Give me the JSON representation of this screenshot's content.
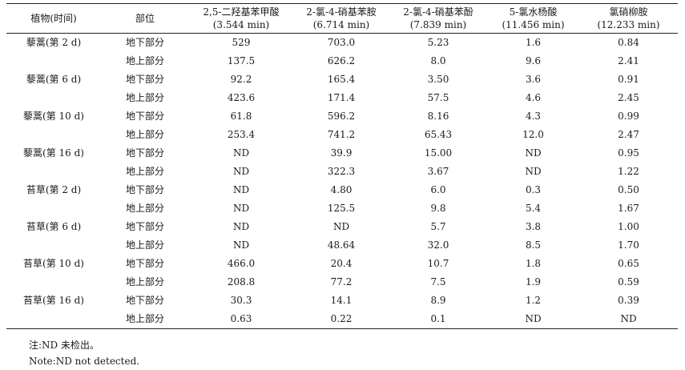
{
  "table": {
    "headers": [
      {
        "title": "植物(时间)",
        "sub": ""
      },
      {
        "title": "部位",
        "sub": ""
      },
      {
        "title": "2,5-二羟基苯甲酸",
        "sub": "(3.544 min)"
      },
      {
        "title": "2-氯-4-硝基苯胺",
        "sub": "(6.714 min)"
      },
      {
        "title": "2-氯-4-硝基苯酚",
        "sub": "(7.839 min)"
      },
      {
        "title": "5-氯水杨酸",
        "sub": "(11.456 min)"
      },
      {
        "title": "氯硝柳胺",
        "sub": "(12.233 min)"
      }
    ],
    "groups": [
      {
        "plant": "藜蒿(第 2 d)",
        "rows": [
          {
            "part": "地下部分",
            "values": [
              "529",
              "703.0",
              "5.23",
              "1.6",
              "0.84"
            ]
          },
          {
            "part": "地上部分",
            "values": [
              "137.5",
              "626.2",
              "8.0",
              "9.6",
              "2.41"
            ]
          }
        ]
      },
      {
        "plant": "藜蒿(第 6 d)",
        "rows": [
          {
            "part": "地下部分",
            "values": [
              "92.2",
              "165.4",
              "3.50",
              "3.6",
              "0.91"
            ]
          },
          {
            "part": "地上部分",
            "values": [
              "423.6",
              "171.4",
              "57.5",
              "4.6",
              "2.45"
            ]
          }
        ]
      },
      {
        "plant": "藜蒿(第 10 d)",
        "rows": [
          {
            "part": "地下部分",
            "values": [
              "61.8",
              "596.2",
              "8.16",
              "4.3",
              "0.99"
            ]
          },
          {
            "part": "地上部分",
            "values": [
              "253.4",
              "741.2",
              "65.43",
              "12.0",
              "2.47"
            ]
          }
        ]
      },
      {
        "plant": "藜蒿(第 16 d)",
        "rows": [
          {
            "part": "地下部分",
            "values": [
              "ND",
              "39.9",
              "15.00",
              "ND",
              "0.95"
            ]
          },
          {
            "part": "地上部分",
            "values": [
              "ND",
              "322.3",
              "3.67",
              "ND",
              "1.22"
            ]
          }
        ]
      },
      {
        "plant": "苔草(第 2 d)",
        "rows": [
          {
            "part": "地下部分",
            "values": [
              "ND",
              "4.80",
              "6.0",
              "0.3",
              "0.50"
            ]
          },
          {
            "part": "地上部分",
            "values": [
              "ND",
              "125.5",
              "9.8",
              "5.4",
              "1.67"
            ]
          }
        ]
      },
      {
        "plant": "苔草(第 6 d)",
        "rows": [
          {
            "part": "地下部分",
            "values": [
              "ND",
              "ND",
              "5.7",
              "3.8",
              "1.00"
            ]
          },
          {
            "part": "地上部分",
            "values": [
              "ND",
              "48.64",
              "32.0",
              "8.5",
              "1.70"
            ]
          }
        ]
      },
      {
        "plant": "苔草(第 10 d)",
        "rows": [
          {
            "part": "地下部分",
            "values": [
              "466.0",
              "20.4",
              "10.7",
              "1.8",
              "0.65"
            ]
          },
          {
            "part": "地上部分",
            "values": [
              "208.8",
              "77.2",
              "7.5",
              "1.9",
              "0.59"
            ]
          }
        ]
      },
      {
        "plant": "苔草(第 16 d)",
        "rows": [
          {
            "part": "地下部分",
            "values": [
              "30.3",
              "14.1",
              "8.9",
              "1.2",
              "0.39"
            ]
          },
          {
            "part": "地上部分",
            "values": [
              "0.63",
              "0.22",
              "0.1",
              "ND",
              "ND"
            ]
          }
        ]
      }
    ]
  },
  "notes": {
    "zh": "注:ND 未检出。",
    "en": "Note:ND not detected."
  }
}
